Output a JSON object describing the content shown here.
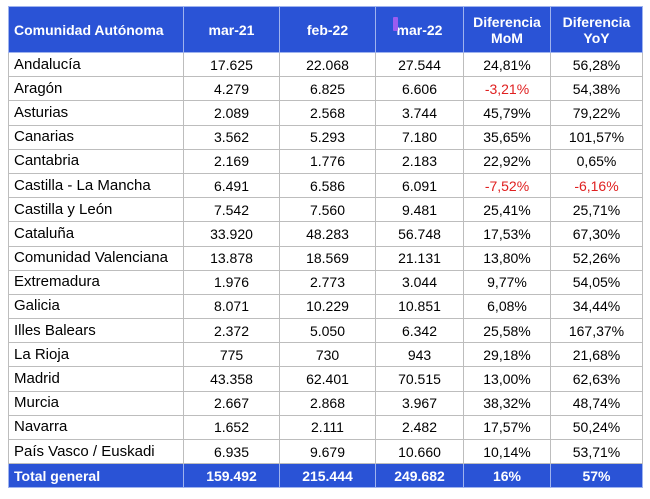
{
  "headers": [
    "Comunidad Autónoma",
    "mar-21",
    "feb-22",
    "mar-22",
    "Diferencia MoM",
    "Diferencia YoY"
  ],
  "rows": [
    {
      "name": "Andalucía",
      "mar21": "17.625",
      "feb22": "22.068",
      "mar22": "27.544",
      "mom": "24,81%",
      "yoy": "56,28%"
    },
    {
      "name": "Aragón",
      "mar21": "4.279",
      "feb22": "6.825",
      "mar22": "6.606",
      "mom": "-3,21%",
      "yoy": "54,38%"
    },
    {
      "name": "Asturias",
      "mar21": "2.089",
      "feb22": "2.568",
      "mar22": "3.744",
      "mom": "45,79%",
      "yoy": "79,22%"
    },
    {
      "name": "Canarias",
      "mar21": "3.562",
      "feb22": "5.293",
      "mar22": "7.180",
      "mom": "35,65%",
      "yoy": "101,57%"
    },
    {
      "name": "Cantabria",
      "mar21": "2.169",
      "feb22": "1.776",
      "mar22": "2.183",
      "mom": "22,92%",
      "yoy": "0,65%"
    },
    {
      "name": "Castilla - La Mancha",
      "mar21": "6.491",
      "feb22": "6.586",
      "mar22": "6.091",
      "mom": "-7,52%",
      "yoy": "-6,16%"
    },
    {
      "name": "Castilla y León",
      "mar21": "7.542",
      "feb22": "7.560",
      "mar22": "9.481",
      "mom": "25,41%",
      "yoy": "25,71%"
    },
    {
      "name": "Cataluña",
      "mar21": "33.920",
      "feb22": "48.283",
      "mar22": "56.748",
      "mom": "17,53%",
      "yoy": "67,30%"
    },
    {
      "name": "Comunidad Valenciana",
      "mar21": "13.878",
      "feb22": "18.569",
      "mar22": "21.131",
      "mom": "13,80%",
      "yoy": "52,26%"
    },
    {
      "name": "Extremadura",
      "mar21": "1.976",
      "feb22": "2.773",
      "mar22": "3.044",
      "mom": "9,77%",
      "yoy": "54,05%"
    },
    {
      "name": "Galicia",
      "mar21": "8.071",
      "feb22": "10.229",
      "mar22": "10.851",
      "mom": "6,08%",
      "yoy": "34,44%"
    },
    {
      "name": "Illes Balears",
      "mar21": "2.372",
      "feb22": "5.050",
      "mar22": "6.342",
      "mom": "25,58%",
      "yoy": "167,37%"
    },
    {
      "name": "La Rioja",
      "mar21": "775",
      "feb22": "730",
      "mar22": "943",
      "mom": "29,18%",
      "yoy": "21,68%"
    },
    {
      "name": "Madrid",
      "mar21": "43.358",
      "feb22": "62.401",
      "mar22": "70.515",
      "mom": "13,00%",
      "yoy": "62,63%"
    },
    {
      "name": "Murcia",
      "mar21": "2.667",
      "feb22": "2.868",
      "mar22": "3.967",
      "mom": "38,32%",
      "yoy": "48,74%"
    },
    {
      "name": "Navarra",
      "mar21": "1.652",
      "feb22": "2.111",
      "mar22": "2.482",
      "mom": "17,57%",
      "yoy": "50,24%"
    },
    {
      "name": "País Vasco / Euskadi",
      "mar21": "6.935",
      "feb22": "9.679",
      "mar22": "10.660",
      "mom": "10,14%",
      "yoy": "53,71%"
    }
  ],
  "total": {
    "name": "Total general",
    "mar21": "159.492",
    "feb22": "215.444",
    "mar22": "249.682",
    "mom": "16%",
    "yoy": "57%"
  },
  "colors": {
    "header_bg": "#2a53d6",
    "header_text": "#ffffff",
    "negative": "#e02020",
    "cursor": "#9b5cf0"
  }
}
